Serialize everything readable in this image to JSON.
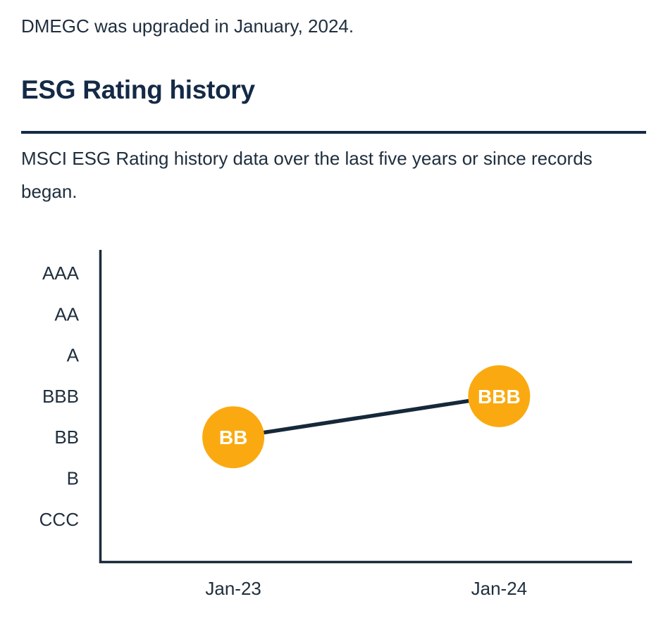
{
  "page": {
    "intro": "DMEGC was upgraded in January, 2024.",
    "section_title": "ESG Rating history",
    "description": "MSCI ESG Rating history data over the last five years or since records began."
  },
  "colors": {
    "heading": "#142A46",
    "body_text": "#202F3E",
    "axis": "#1C2B3B",
    "marker_fill": "#FAAA10",
    "marker_label": "#FFFFFF",
    "trend_line": "#16283A",
    "page_bg": "#FFFFFF"
  },
  "chart_data": {
    "type": "line",
    "title": "ESG Rating history",
    "categories": [
      "Jan-23",
      "Jan-24"
    ],
    "series": [
      {
        "name": "MSCI ESG Rating",
        "values": [
          "BB",
          "BBB"
        ]
      }
    ],
    "point_labels": [
      "BB",
      "BBB"
    ],
    "y_scale_top_to_bottom": [
      "AAA",
      "AA",
      "A",
      "BBB",
      "BB",
      "B",
      "CCC"
    ],
    "xlabel": "",
    "ylabel": "",
    "legend": "none",
    "grid": "off",
    "marker_color": "#FAAA10",
    "marker_label_color": "#FFFFFF",
    "line_color": "#16283A"
  }
}
